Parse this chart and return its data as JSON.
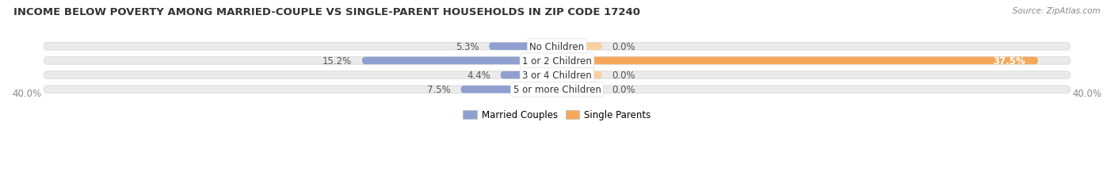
{
  "title": "INCOME BELOW POVERTY AMONG MARRIED-COUPLE VS SINGLE-PARENT HOUSEHOLDS IN ZIP CODE 17240",
  "source": "Source: ZipAtlas.com",
  "categories": [
    "No Children",
    "1 or 2 Children",
    "3 or 4 Children",
    "5 or more Children"
  ],
  "married_values": [
    5.3,
    15.2,
    4.4,
    7.5
  ],
  "single_values": [
    0.0,
    37.5,
    0.0,
    0.0
  ],
  "axis_max": 40.0,
  "married_color": "#8fa0d0",
  "single_color": "#f5a85a",
  "single_color_light": "#f9cfa0",
  "bar_bg_color": "#ebebeb",
  "bar_bg_stroke": "#dddddd",
  "title_fontsize": 9.5,
  "label_fontsize": 8.5,
  "category_fontsize": 8.5,
  "axis_label_left": "40.0%",
  "axis_label_right": "40.0%",
  "legend_married": "Married Couples",
  "legend_single": "Single Parents",
  "title_color": "#333333",
  "source_color": "#888888",
  "value_color": "#555555",
  "value_color_inside": "#ffffff",
  "category_color": "#333333",
  "axis_tick_color": "#888888",
  "single_small_value": 3.5
}
